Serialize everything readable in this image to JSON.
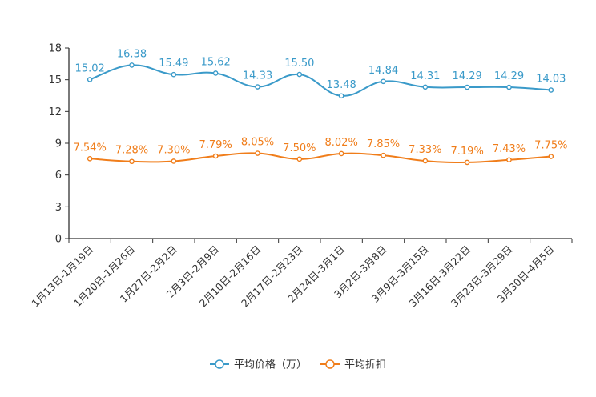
{
  "chart_data": {
    "type": "line",
    "title": "",
    "xlabel": "",
    "ylabel": "",
    "ylim": [
      0,
      18
    ],
    "yticks": [
      0,
      3,
      6,
      9,
      12,
      15,
      18
    ],
    "grid": false,
    "legend_position": "bottom-center",
    "categories": [
      "1月13日-1月19日",
      "1月20日-1月26日",
      "1月27日-2月2日",
      "2月3日-2月9日",
      "2月10日-2月16日",
      "2月17日-2月23日",
      "2月24日-3月1日",
      "3月2日-3月8日",
      "3月9日-3月15日",
      "3月16日-3月22日",
      "3月23日-3月29日",
      "3月30日-4月5日"
    ],
    "series": [
      {
        "name": "平均价格（万）",
        "color": "#3a9ac9",
        "values": [
          15.02,
          16.38,
          15.49,
          15.62,
          14.33,
          15.5,
          13.48,
          14.84,
          14.31,
          14.29,
          14.29,
          14.03
        ],
        "labels": [
          "15.02",
          "16.38",
          "15.49",
          "15.62",
          "14.33",
          "15.50",
          "13.48",
          "14.84",
          "14.31",
          "14.29",
          "14.29",
          "14.03"
        ]
      },
      {
        "name": "平均折扣",
        "color": "#f07d1a",
        "values": [
          7.54,
          7.28,
          7.3,
          7.79,
          8.05,
          7.5,
          8.02,
          7.85,
          7.33,
          7.19,
          7.43,
          7.75
        ],
        "labels": [
          "7.54%",
          "7.28%",
          "7.30%",
          "7.79%",
          "8.05%",
          "7.50%",
          "8.02%",
          "7.85%",
          "7.33%",
          "7.19%",
          "7.43%",
          "7.75%"
        ]
      }
    ]
  }
}
